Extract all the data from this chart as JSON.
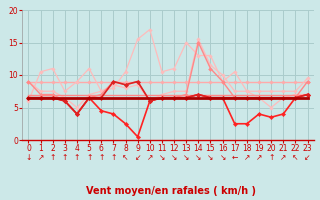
{
  "background_color": "#cce8e8",
  "grid_color": "#aacccc",
  "xlim": [
    -0.5,
    23.5
  ],
  "ylim": [
    0,
    20
  ],
  "yticks": [
    0,
    5,
    10,
    15,
    20
  ],
  "xticks": [
    0,
    1,
    2,
    3,
    4,
    5,
    6,
    7,
    8,
    9,
    10,
    11,
    12,
    13,
    14,
    15,
    16,
    17,
    18,
    19,
    20,
    21,
    22,
    23
  ],
  "lines": [
    {
      "y": [
        9.0,
        9.0,
        9.0,
        9.0,
        9.0,
        9.0,
        9.0,
        9.0,
        9.0,
        9.0,
        9.0,
        9.0,
        9.0,
        9.0,
        9.0,
        9.0,
        9.0,
        9.0,
        9.0,
        9.0,
        9.0,
        9.0,
        9.0,
        9.0
      ],
      "color": "#ffaaaa",
      "lw": 1.0,
      "marker": "D",
      "ms": 1.8,
      "zorder": 2
    },
    {
      "y": [
        6.0,
        10.5,
        11.0,
        7.5,
        9.0,
        11.0,
        7.5,
        8.0,
        10.5,
        15.5,
        17.0,
        10.5,
        11.0,
        15.0,
        13.0,
        13.0,
        9.0,
        10.5,
        7.5,
        6.5,
        5.0,
        6.5,
        7.0,
        7.0
      ],
      "color": "#ffbbbb",
      "lw": 0.9,
      "marker": "D",
      "ms": 1.8,
      "zorder": 2
    },
    {
      "y": [
        9.0,
        7.5,
        7.5,
        6.5,
        5.0,
        7.0,
        7.5,
        8.5,
        8.0,
        8.5,
        6.0,
        7.0,
        7.5,
        7.5,
        15.5,
        11.5,
        10.0,
        7.5,
        7.5,
        7.5,
        7.5,
        7.5,
        7.5,
        9.5
      ],
      "color": "#ffbbbb",
      "lw": 0.9,
      "marker": "D",
      "ms": 1.8,
      "zorder": 2
    },
    {
      "y": [
        9.0,
        7.0,
        7.0,
        6.0,
        4.0,
        6.5,
        7.0,
        9.0,
        8.5,
        9.0,
        6.0,
        6.5,
        6.5,
        7.0,
        15.0,
        11.0,
        9.0,
        6.5,
        6.5,
        6.5,
        6.5,
        6.5,
        6.5,
        9.0
      ],
      "color": "#ff8888",
      "lw": 1.0,
      "marker": "D",
      "ms": 2.0,
      "zorder": 3
    },
    {
      "y": [
        7.0,
        7.0,
        7.0,
        7.0,
        7.0,
        7.0,
        7.0,
        7.0,
        7.0,
        7.0,
        7.0,
        7.0,
        7.0,
        7.0,
        7.0,
        7.0,
        7.0,
        7.0,
        7.0,
        7.0,
        7.0,
        7.0,
        7.0,
        7.0
      ],
      "color": "#ff8888",
      "lw": 1.0,
      "marker": null,
      "ms": 0,
      "zorder": 3
    },
    {
      "y": [
        6.5,
        6.5,
        6.5,
        6.0,
        4.0,
        6.5,
        6.5,
        9.0,
        8.5,
        9.0,
        6.0,
        6.5,
        6.5,
        6.5,
        7.0,
        6.5,
        6.5,
        6.5,
        6.5,
        6.5,
        6.5,
        6.5,
        6.5,
        7.0
      ],
      "color": "#dd2222",
      "lw": 1.2,
      "marker": "D",
      "ms": 2.2,
      "zorder": 5
    },
    {
      "y": [
        6.5,
        6.5,
        6.5,
        6.0,
        4.0,
        6.5,
        4.5,
        4.0,
        2.5,
        0.5,
        6.0,
        6.5,
        6.5,
        6.5,
        7.0,
        6.5,
        6.5,
        2.5,
        2.5,
        4.0,
        3.5,
        4.0,
        6.5,
        7.0
      ],
      "color": "#ff2222",
      "lw": 1.2,
      "marker": "D",
      "ms": 2.2,
      "zorder": 4
    },
    {
      "y": [
        6.5,
        6.5,
        6.5,
        6.5,
        6.5,
        6.5,
        6.5,
        6.5,
        6.5,
        6.5,
        6.5,
        6.5,
        6.5,
        6.5,
        6.5,
        6.5,
        6.5,
        6.5,
        6.5,
        6.5,
        6.5,
        6.5,
        6.5,
        6.5
      ],
      "color": "#aa0000",
      "lw": 2.0,
      "marker": null,
      "ms": 0,
      "zorder": 6
    }
  ],
  "wind_arrows": [
    "↓",
    "↗",
    "↑",
    "↑",
    "↑",
    "↑",
    "↑",
    "↑",
    "↖",
    "↙",
    "↗",
    "↘",
    "↘",
    "↘",
    "↘",
    "↘",
    "↘",
    "←",
    "↗",
    "↗",
    "↑",
    "↗",
    "↖",
    "↙"
  ],
  "arrow_color": "#cc0000",
  "xlabel": "Vent moyen/en rafales ( km/h )",
  "xlabel_color": "#cc0000",
  "tick_color": "#cc0000",
  "tick_fontsize": 5.5,
  "arrow_fontsize": 5.5,
  "xlabel_fontsize": 7.0
}
